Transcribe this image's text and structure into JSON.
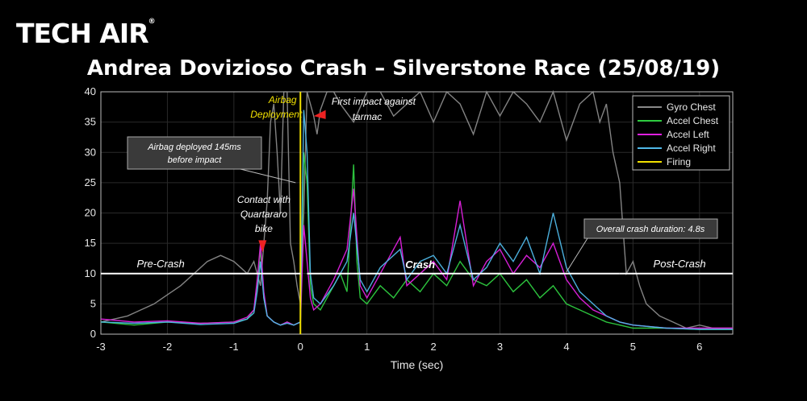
{
  "brand": {
    "logo_text": "TECH AIR",
    "logo_mark": "®"
  },
  "chart_data": {
    "type": "line",
    "title": "Andrea Dovizioso Crash – Silverstone Race (25/08/19)",
    "xlabel": "Time (sec)",
    "ylabel": "",
    "xlim": [
      -3,
      6.5
    ],
    "ylim": [
      0,
      40
    ],
    "x_ticks": [
      -3,
      -2,
      -1,
      0,
      1,
      2,
      3,
      4,
      5,
      6
    ],
    "y_ticks": [
      0,
      5,
      10,
      15,
      20,
      25,
      30,
      35,
      40
    ],
    "grid": true,
    "legend": {
      "position": "top-right",
      "entries": [
        {
          "name": "Gyro Chest",
          "color": "#8a8a8a"
        },
        {
          "name": "Accel Chest",
          "color": "#2ecc40"
        },
        {
          "name": "Accel Left",
          "color": "#e020e0"
        },
        {
          "name": "Accel Right",
          "color": "#4fb8e8"
        },
        {
          "name": "Firing",
          "color": "#f2e100"
        }
      ]
    },
    "firing_x": 0,
    "phases": [
      {
        "label": "Pre-Crash",
        "x_start": -3,
        "x_end": 0,
        "y": 10
      },
      {
        "label": "Crash",
        "x_start": 0.1,
        "x_end": 4.8,
        "y": 10
      },
      {
        "label": "Post-Crash",
        "x_start": 4.8,
        "x_end": 6.5,
        "y": 10
      }
    ],
    "annotations": {
      "airbag_deployment": "Airbag Deployment",
      "airbag_deployed_box": "Airbag deployed 145ms before impact",
      "contact": "Contact with Quartararo bike",
      "first_impact": "First impact against tarmac",
      "duration_box": "Overall crash duration: 4.8s"
    },
    "series": [
      {
        "name": "Gyro Chest",
        "color": "#8a8a8a",
        "x": [
          -3,
          -2.8,
          -2.6,
          -2.4,
          -2.2,
          -2.0,
          -1.8,
          -1.6,
          -1.4,
          -1.2,
          -1.0,
          -0.9,
          -0.8,
          -0.7,
          -0.6,
          -0.5,
          -0.45,
          -0.4,
          -0.35,
          -0.3,
          -0.25,
          -0.2,
          -0.15,
          -0.1,
          -0.05,
          0,
          0.05,
          0.1,
          0.15,
          0.2,
          0.25,
          0.3,
          0.4,
          0.5,
          0.6,
          0.8,
          1.0,
          1.2,
          1.4,
          1.6,
          1.8,
          2.0,
          2.2,
          2.4,
          2.6,
          2.8,
          3.0,
          3.2,
          3.4,
          3.6,
          3.8,
          4.0,
          4.2,
          4.4,
          4.5,
          4.6,
          4.7,
          4.8,
          4.9,
          5.0,
          5.1,
          5.2,
          5.4,
          5.6,
          5.8,
          6.0,
          6.2,
          6.5
        ],
        "values": [
          2,
          2.5,
          3,
          4,
          5,
          6.5,
          8,
          10,
          12,
          13,
          12,
          11,
          10,
          12,
          8,
          22,
          35,
          38,
          30,
          20,
          40,
          40,
          15,
          12,
          8,
          5,
          20,
          40,
          38,
          36,
          33,
          37,
          40,
          40,
          38,
          35,
          40,
          40,
          36,
          38,
          40,
          35,
          40,
          38,
          33,
          40,
          36,
          40,
          38,
          35,
          40,
          32,
          38,
          40,
          35,
          38,
          30,
          25,
          10,
          12,
          8,
          5,
          3,
          2,
          1,
          1.5,
          1,
          1
        ]
      },
      {
        "name": "Accel Chest",
        "color": "#2ecc40",
        "x": [
          -3,
          -2.5,
          -2.0,
          -1.5,
          -1.0,
          -0.8,
          -0.7,
          -0.65,
          -0.6,
          -0.55,
          -0.5,
          -0.4,
          -0.3,
          -0.2,
          -0.1,
          0,
          0.05,
          0.1,
          0.15,
          0.2,
          0.3,
          0.4,
          0.5,
          0.6,
          0.7,
          0.8,
          0.85,
          0.9,
          1.0,
          1.2,
          1.4,
          1.6,
          1.8,
          2.0,
          2.2,
          2.4,
          2.6,
          2.8,
          3.0,
          3.2,
          3.4,
          3.6,
          3.8,
          4.0,
          4.2,
          4.4,
          4.6,
          4.8,
          5.0,
          5.5,
          6.0,
          6.5
        ],
        "values": [
          2,
          1.5,
          2,
          1.8,
          2,
          2.5,
          4,
          8,
          14,
          6,
          3,
          2,
          1.5,
          2,
          1.5,
          2,
          30,
          25,
          8,
          5,
          4,
          6,
          8,
          10,
          7,
          28,
          12,
          6,
          5,
          8,
          6,
          9,
          7,
          10,
          8,
          12,
          9,
          8,
          10,
          7,
          9,
          6,
          8,
          5,
          4,
          3,
          2,
          1.5,
          1,
          1,
          0.8,
          0.8
        ]
      },
      {
        "name": "Accel Left",
        "color": "#e020e0",
        "x": [
          -3,
          -2.5,
          -2.0,
          -1.5,
          -1.0,
          -0.8,
          -0.7,
          -0.65,
          -0.6,
          -0.55,
          -0.5,
          -0.4,
          -0.3,
          -0.2,
          -0.1,
          0,
          0.05,
          0.1,
          0.15,
          0.2,
          0.3,
          0.5,
          0.7,
          0.8,
          0.9,
          1.0,
          1.2,
          1.5,
          1.6,
          1.8,
          2.0,
          2.2,
          2.4,
          2.6,
          2.8,
          3.0,
          3.2,
          3.4,
          3.6,
          3.8,
          4.0,
          4.2,
          4.4,
          4.6,
          4.8,
          5.0,
          5.5,
          6.0,
          6.5
        ],
        "values": [
          2.5,
          2,
          2.2,
          1.8,
          2,
          2.8,
          4,
          9,
          15,
          7,
          3,
          2,
          1.5,
          2,
          1.5,
          2,
          18,
          12,
          6,
          4,
          5,
          9,
          14,
          24,
          8,
          6,
          10,
          16,
          8,
          10,
          12,
          9,
          22,
          8,
          12,
          14,
          10,
          13,
          11,
          15,
          9,
          6,
          4,
          3,
          2,
          1.5,
          1,
          1,
          1
        ]
      },
      {
        "name": "Accel Right",
        "color": "#4fb8e8",
        "x": [
          -3,
          -2.5,
          -2.0,
          -1.5,
          -1.0,
          -0.8,
          -0.7,
          -0.65,
          -0.6,
          -0.55,
          -0.5,
          -0.4,
          -0.3,
          -0.2,
          -0.1,
          0,
          0.05,
          0.1,
          0.15,
          0.2,
          0.3,
          0.5,
          0.7,
          0.8,
          0.9,
          1.0,
          1.2,
          1.5,
          1.6,
          1.8,
          2.0,
          2.2,
          2.4,
          2.6,
          2.8,
          3.0,
          3.2,
          3.4,
          3.6,
          3.8,
          4.0,
          4.2,
          4.4,
          4.6,
          4.8,
          5.0,
          5.5,
          6.0,
          6.5
        ],
        "values": [
          2,
          1.8,
          2,
          1.6,
          1.8,
          2.5,
          3.5,
          7,
          12,
          6,
          3,
          2,
          1.5,
          1.8,
          1.5,
          2,
          37,
          30,
          10,
          6,
          5,
          8,
          12,
          20,
          9,
          7,
          11,
          14,
          9,
          12,
          13,
          10,
          18,
          9,
          11,
          15,
          12,
          16,
          10,
          20,
          11,
          7,
          5,
          3,
          2,
          1.5,
          1,
          0.8,
          0.8
        ]
      }
    ]
  }
}
